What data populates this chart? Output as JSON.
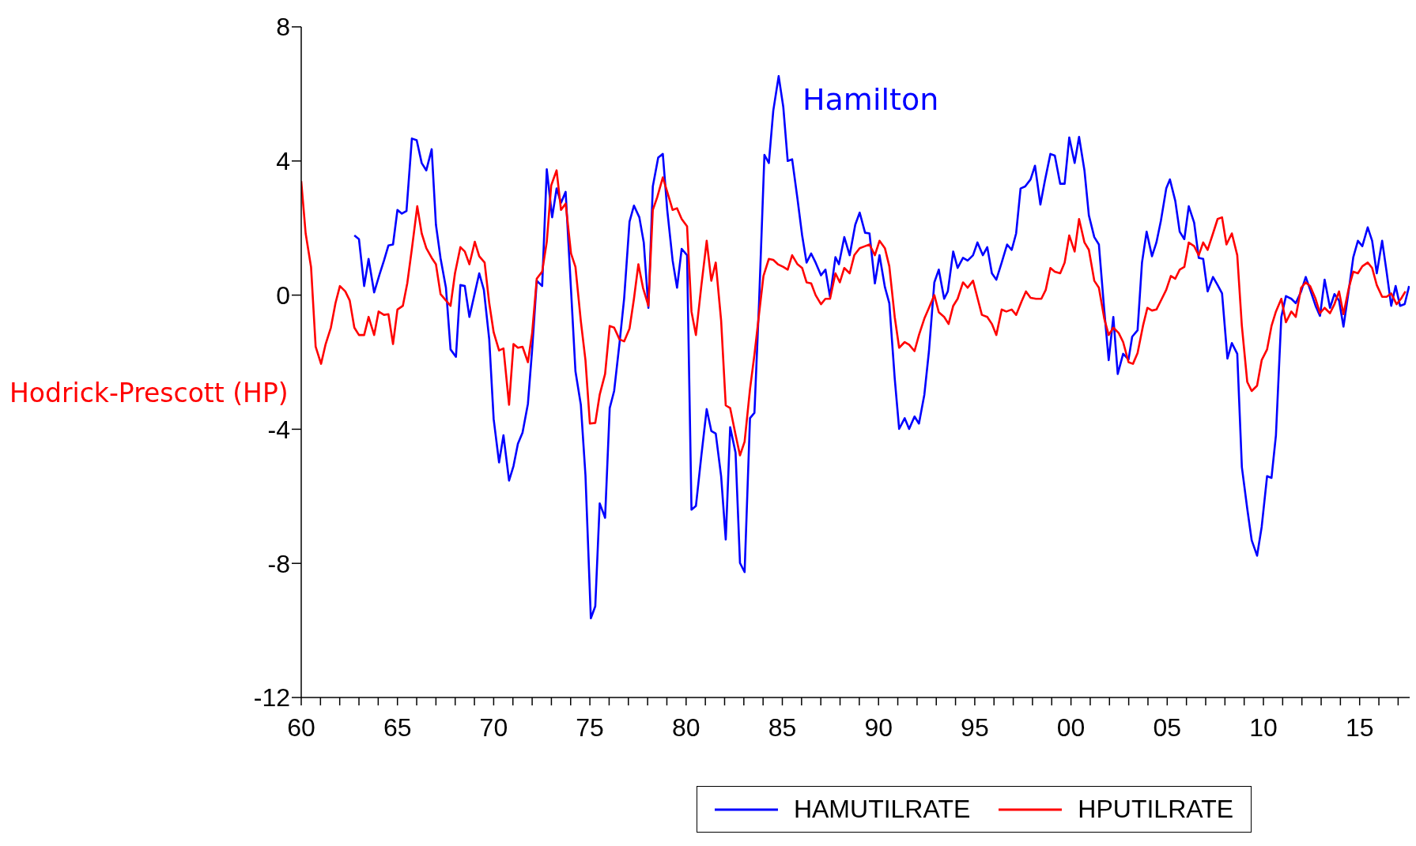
{
  "chart_data": {
    "type": "line",
    "xlim": [
      1960,
      2017.6
    ],
    "ylim": [
      -12,
      8
    ],
    "yticks": [
      -12,
      -8,
      -4,
      0,
      4,
      8
    ],
    "xticks": [
      {
        "value": 1960,
        "label": "60"
      },
      {
        "value": 1961,
        "label": null
      },
      {
        "value": 1962,
        "label": null
      },
      {
        "value": 1963,
        "label": null
      },
      {
        "value": 1964,
        "label": null
      },
      {
        "value": 1965,
        "label": "65"
      },
      {
        "value": 1966,
        "label": null
      },
      {
        "value": 1967,
        "label": null
      },
      {
        "value": 1968,
        "label": null
      },
      {
        "value": 1969,
        "label": null
      },
      {
        "value": 1970,
        "label": "70"
      },
      {
        "value": 1971,
        "label": null
      },
      {
        "value": 1972,
        "label": null
      },
      {
        "value": 1973,
        "label": null
      },
      {
        "value": 1974,
        "label": null
      },
      {
        "value": 1975,
        "label": "75"
      },
      {
        "value": 1976,
        "label": null
      },
      {
        "value": 1977,
        "label": null
      },
      {
        "value": 1978,
        "label": null
      },
      {
        "value": 1979,
        "label": null
      },
      {
        "value": 1980,
        "label": "80"
      },
      {
        "value": 1981,
        "label": null
      },
      {
        "value": 1982,
        "label": null
      },
      {
        "value": 1983,
        "label": null
      },
      {
        "value": 1984,
        "label": null
      },
      {
        "value": 1985,
        "label": "85"
      },
      {
        "value": 1986,
        "label": null
      },
      {
        "value": 1987,
        "label": null
      },
      {
        "value": 1988,
        "label": null
      },
      {
        "value": 1989,
        "label": null
      },
      {
        "value": 1990,
        "label": "90"
      },
      {
        "value": 1991,
        "label": null
      },
      {
        "value": 1992,
        "label": null
      },
      {
        "value": 1993,
        "label": null
      },
      {
        "value": 1994,
        "label": null
      },
      {
        "value": 1995,
        "label": "95"
      },
      {
        "value": 1996,
        "label": null
      },
      {
        "value": 1997,
        "label": null
      },
      {
        "value": 1998,
        "label": null
      },
      {
        "value": 1999,
        "label": null
      },
      {
        "value": 2000,
        "label": "00"
      },
      {
        "value": 2001,
        "label": null
      },
      {
        "value": 2002,
        "label": null
      },
      {
        "value": 2003,
        "label": null
      },
      {
        "value": 2004,
        "label": null
      },
      {
        "value": 2005,
        "label": "05"
      },
      {
        "value": 2006,
        "label": null
      },
      {
        "value": 2007,
        "label": null
      },
      {
        "value": 2008,
        "label": null
      },
      {
        "value": 2009,
        "label": null
      },
      {
        "value": 2010,
        "label": "10"
      },
      {
        "value": 2011,
        "label": null
      },
      {
        "value": 2012,
        "label": null
      },
      {
        "value": 2013,
        "label": null
      },
      {
        "value": 2014,
        "label": null
      },
      {
        "value": 2015,
        "label": "15"
      },
      {
        "value": 2016,
        "label": null
      },
      {
        "value": 2017,
        "label": null
      }
    ],
    "grid": false,
    "legend": "bottom",
    "marker": "none",
    "line_style": "solid",
    "annotations": [
      "Hamilton",
      "Hodrick-Prescott (HP)"
    ],
    "series": [
      {
        "name": "HAMUTILRATE",
        "color": "#0000ff",
        "x": [
          1962.76,
          1963.0,
          1963.27,
          1963.5,
          1963.79,
          1964.07,
          1964.3,
          1964.53,
          1964.77,
          1965.0,
          1965.23,
          1965.47,
          1965.75,
          1966.0,
          1966.26,
          1966.5,
          1966.78,
          1967.0,
          1967.24,
          1967.52,
          1967.76,
          1968.04,
          1968.27,
          1968.5,
          1968.74,
          1969.25,
          1969.49,
          1969.77,
          1970.0,
          1970.28,
          1970.51,
          1970.8,
          1971.03,
          1971.26,
          1971.5,
          1971.78,
          1972.0,
          1972.24,
          1972.52,
          1972.76,
          1973.04,
          1973.27,
          1973.5,
          1973.74,
          1974.02,
          1974.25,
          1974.53,
          1974.77,
          1975.05,
          1975.28,
          1975.51,
          1975.79,
          1976.03,
          1976.26,
          1976.54,
          1976.78,
          1977.06,
          1977.29,
          1977.57,
          1977.8,
          1978.04,
          1978.27,
          1978.55,
          1978.79,
          1979.02,
          1979.3,
          1979.53,
          1979.77,
          1980.05,
          1980.28,
          1980.51,
          1980.79,
          1981.07,
          1981.31,
          1981.54,
          1981.82,
          1982.06,
          1982.29,
          1982.57,
          1982.8,
          1983.04,
          1983.32,
          1983.55,
          1983.79,
          1984.07,
          1984.3,
          1984.53,
          1984.81,
          1985.05,
          1985.28,
          1985.51,
          1985.79,
          1986.03,
          1986.26,
          1986.5,
          1986.73,
          1987.01,
          1987.24,
          1987.48,
          1987.76,
          1987.94,
          1988.22,
          1988.5,
          1988.79,
          1989.02,
          1989.3,
          1989.53,
          1989.81,
          1990.05,
          1990.33,
          1990.56,
          1990.84,
          1991.07,
          1991.36,
          1991.59,
          1991.87,
          1992.1,
          1992.38,
          1992.62,
          1992.9,
          1993.13,
          1993.41,
          1993.6,
          1993.88,
          1994.11,
          1994.39,
          1994.63,
          1994.91,
          1995.14,
          1995.42,
          1995.65,
          1995.89,
          1996.12,
          1996.4,
          1996.68,
          1996.92,
          1997.15,
          1997.38,
          1997.62,
          1997.9,
          1998.13,
          1998.41,
          1998.64,
          1998.93,
          1999.16,
          1999.44,
          1999.67,
          1999.91,
          2000.19,
          2000.42,
          2000.7,
          2000.93,
          2001.21,
          2001.45,
          2001.73,
          2001.96,
          2002.2,
          2002.43,
          2002.71,
          2002.99,
          2003.18,
          2003.46,
          2003.69,
          2003.93,
          2004.21,
          2004.44,
          2004.67,
          2004.95,
          2005.14,
          2005.42,
          2005.65,
          2005.89,
          2006.12,
          2006.4,
          2006.64,
          2006.87,
          2007.1,
          2007.38,
          2007.62,
          2007.85,
          2008.13,
          2008.36,
          2008.64,
          2008.88,
          2009.16,
          2009.39,
          2009.67,
          2009.91,
          2010.19,
          2010.42,
          2010.65,
          2010.93,
          2011.17,
          2011.45,
          2011.68,
          2011.96,
          2012.2,
          2012.43,
          2012.71,
          2012.94,
          2013.18,
          2013.46,
          2013.69,
          2013.93,
          2014.16,
          2014.44,
          2014.67,
          2014.91,
          2015.14,
          2015.42,
          2015.65,
          2015.89,
          2016.17,
          2016.4,
          2016.64,
          2016.87,
          2017.1,
          2017.34,
          2017.57
        ],
        "values": [
          1.78,
          1.67,
          0.27,
          1.08,
          0.08,
          0.62,
          1.03,
          1.48,
          1.51,
          2.54,
          2.43,
          2.51,
          4.67,
          4.62,
          3.94,
          3.72,
          4.35,
          2.1,
          1.1,
          0.22,
          -1.62,
          -1.84,
          0.3,
          0.27,
          -0.65,
          0.65,
          0.16,
          -1.32,
          -3.7,
          -4.99,
          -4.18,
          -5.53,
          -5.1,
          -4.43,
          -4.1,
          -3.24,
          -1.62,
          0.43,
          0.27,
          3.75,
          2.32,
          3.18,
          2.75,
          3.08,
          0.16,
          -2.27,
          -3.27,
          -5.37,
          -9.64,
          -9.28,
          -6.21,
          -6.64,
          -3.37,
          -2.86,
          -1.43,
          -0.1,
          2.19,
          2.67,
          2.32,
          1.57,
          -0.38,
          3.24,
          4.1,
          4.21,
          2.54,
          1.03,
          0.22,
          1.38,
          1.19,
          -6.4,
          -6.29,
          -4.8,
          -3.4,
          -4.05,
          -4.13,
          -5.4,
          -7.29,
          -3.94,
          -4.7,
          -7.99,
          -8.26,
          -3.67,
          -3.51,
          -0.24,
          4.18,
          3.94,
          5.5,
          6.53,
          5.61,
          4.0,
          4.05,
          2.86,
          1.78,
          0.97,
          1.24,
          0.97,
          0.59,
          0.76,
          -0.05,
          1.13,
          0.92,
          1.73,
          1.19,
          2.1,
          2.46,
          1.86,
          1.84,
          0.35,
          1.19,
          0.24,
          -0.24,
          -2.48,
          -3.99,
          -3.67,
          -3.99,
          -3.62,
          -3.83,
          -2.97,
          -1.67,
          0.38,
          0.76,
          -0.11,
          0.11,
          1.3,
          0.81,
          1.11,
          1.03,
          1.19,
          1.57,
          1.19,
          1.43,
          0.65,
          0.46,
          0.97,
          1.51,
          1.35,
          1.84,
          3.18,
          3.24,
          3.45,
          3.86,
          2.7,
          3.4,
          4.21,
          4.16,
          3.32,
          3.32,
          4.7,
          3.94,
          4.72,
          3.72,
          2.38,
          1.73,
          1.51,
          -0.46,
          -1.94,
          -0.65,
          -2.35,
          -1.75,
          -1.92,
          -1.24,
          -1.05,
          0.97,
          1.89,
          1.16,
          1.57,
          2.21,
          3.18,
          3.45,
          2.81,
          1.89,
          1.67,
          2.65,
          2.16,
          1.11,
          1.08,
          0.11,
          0.54,
          0.3,
          0.05,
          -1.89,
          -1.43,
          -1.75,
          -5.13,
          -6.37,
          -7.31,
          -7.77,
          -6.91,
          -5.4,
          -5.45,
          -4.18,
          -0.65,
          -0.03,
          -0.11,
          -0.24,
          0.11,
          0.54,
          0.16,
          -0.32,
          -0.62,
          0.46,
          -0.38,
          0.03,
          -0.16,
          -0.94,
          0.16,
          1.13,
          1.62,
          1.46,
          2.02,
          1.62,
          0.65,
          1.62,
          0.7,
          -0.32,
          0.27,
          -0.32,
          -0.27,
          0.27
        ]
      },
      {
        "name": "HPUTILRATE",
        "color": "#ff0000",
        "x": [
          1960.0,
          1960.23,
          1960.51,
          1960.75,
          1961.03,
          1961.26,
          1961.54,
          1961.78,
          1962.01,
          1962.29,
          1962.52,
          1962.76,
          1963.0,
          1963.27,
          1963.5,
          1963.79,
          1964.02,
          1964.3,
          1964.53,
          1964.77,
          1965.0,
          1965.28,
          1965.51,
          1965.75,
          1966.03,
          1966.26,
          1966.5,
          1966.78,
          1967.0,
          1967.24,
          1967.52,
          1967.76,
          1967.99,
          1968.27,
          1968.5,
          1968.74,
          1969.02,
          1969.25,
          1969.53,
          1969.77,
          1970.0,
          1970.28,
          1970.51,
          1970.8,
          1971.03,
          1971.26,
          1971.5,
          1971.78,
          1972.0,
          1972.24,
          1972.52,
          1972.76,
          1972.99,
          1973.27,
          1973.5,
          1973.74,
          1974.02,
          1974.25,
          1974.53,
          1974.77,
          1975.0,
          1975.28,
          1975.51,
          1975.79,
          1976.03,
          1976.26,
          1976.54,
          1976.78,
          1977.06,
          1977.29,
          1977.52,
          1977.76,
          1978.04,
          1978.27,
          1978.5,
          1978.79,
          1979.02,
          1979.3,
          1979.53,
          1979.77,
          1980.05,
          1980.28,
          1980.51,
          1980.79,
          1981.07,
          1981.31,
          1981.54,
          1981.82,
          1982.06,
          1982.29,
          1982.57,
          1982.8,
          1983.04,
          1983.32,
          1983.55,
          1983.79,
          1984.02,
          1984.3,
          1984.53,
          1984.77,
          1985.05,
          1985.28,
          1985.51,
          1985.79,
          1986.03,
          1986.26,
          1986.5,
          1986.73,
          1987.01,
          1987.24,
          1987.48,
          1987.76,
          1987.99,
          1988.22,
          1988.5,
          1988.74,
          1989.02,
          1989.3,
          1989.53,
          1989.81,
          1990.05,
          1990.33,
          1990.56,
          1990.84,
          1991.07,
          1991.36,
          1991.59,
          1991.87,
          1992.1,
          1992.38,
          1992.62,
          1992.9,
          1993.13,
          1993.41,
          1993.64,
          1993.88,
          1994.11,
          1994.39,
          1994.63,
          1994.91,
          1995.14,
          1995.37,
          1995.65,
          1995.89,
          1996.12,
          1996.4,
          1996.64,
          1996.92,
          1997.15,
          1997.43,
          1997.66,
          1997.9,
          1998.18,
          1998.46,
          1998.69,
          1998.93,
          1999.16,
          1999.44,
          1999.67,
          1999.91,
          2000.19,
          2000.42,
          2000.7,
          2000.93,
          2001.21,
          2001.45,
          2001.73,
          2001.96,
          2002.2,
          2002.48,
          2002.71,
          2002.99,
          2003.22,
          2003.46,
          2003.74,
          2003.97,
          2004.21,
          2004.44,
          2004.72,
          2004.95,
          2005.19,
          2005.42,
          2005.65,
          2005.89,
          2006.12,
          2006.4,
          2006.64,
          2006.87,
          2007.1,
          2007.38,
          2007.62,
          2007.85,
          2008.08,
          2008.36,
          2008.64,
          2008.88,
          2009.16,
          2009.39,
          2009.67,
          2009.91,
          2010.19,
          2010.42,
          2010.65,
          2010.93,
          2011.17,
          2011.45,
          2011.68,
          2011.96,
          2012.2,
          2012.43,
          2012.71,
          2012.94,
          2013.18,
          2013.46,
          2013.69,
          2013.93,
          2014.16,
          2014.44,
          2014.67,
          2014.91,
          2015.14,
          2015.42,
          2015.65,
          2015.89,
          2016.17,
          2016.4,
          2016.64,
          2016.92,
          2017.15,
          2017.38
        ],
        "values": [
          3.4,
          1.84,
          0.84,
          -1.54,
          -2.05,
          -1.48,
          -0.97,
          -0.24,
          0.27,
          0.11,
          -0.16,
          -0.97,
          -1.19,
          -1.19,
          -0.65,
          -1.19,
          -0.49,
          -0.59,
          -0.57,
          -1.46,
          -0.43,
          -0.32,
          0.35,
          1.38,
          2.65,
          1.84,
          1.4,
          1.11,
          0.92,
          0.03,
          -0.16,
          -0.32,
          0.65,
          1.43,
          1.3,
          0.92,
          1.59,
          1.16,
          0.97,
          -0.24,
          -1.11,
          -1.65,
          -1.59,
          -3.27,
          -1.46,
          -1.57,
          -1.54,
          -2.0,
          -1.13,
          0.49,
          0.7,
          1.59,
          3.27,
          3.72,
          2.54,
          2.73,
          1.24,
          0.84,
          -0.78,
          -1.94,
          -3.83,
          -3.81,
          -2.97,
          -2.35,
          -0.92,
          -0.97,
          -1.32,
          -1.38,
          -1.0,
          -0.11,
          0.92,
          0.22,
          -0.32,
          2.54,
          2.92,
          3.51,
          3.08,
          2.54,
          2.59,
          2.27,
          2.05,
          -0.49,
          -1.19,
          0.27,
          1.62,
          0.43,
          0.97,
          -0.76,
          -3.29,
          -3.37,
          -4.16,
          -4.78,
          -4.37,
          -2.81,
          -1.78,
          -0.57,
          0.57,
          1.08,
          1.05,
          0.92,
          0.84,
          0.76,
          1.19,
          0.92,
          0.81,
          0.38,
          0.35,
          0.0,
          -0.27,
          -0.11,
          -0.11,
          0.65,
          0.38,
          0.81,
          0.65,
          1.19,
          1.4,
          1.46,
          1.51,
          1.19,
          1.62,
          1.4,
          0.86,
          -0.65,
          -1.57,
          -1.4,
          -1.48,
          -1.67,
          -1.19,
          -0.7,
          -0.38,
          0.0,
          -0.51,
          -0.65,
          -0.86,
          -0.32,
          -0.11,
          0.38,
          0.22,
          0.43,
          -0.08,
          -0.59,
          -0.65,
          -0.86,
          -1.19,
          -0.43,
          -0.49,
          -0.43,
          -0.59,
          -0.19,
          0.11,
          -0.08,
          -0.11,
          -0.11,
          0.16,
          0.81,
          0.7,
          0.65,
          0.97,
          1.78,
          1.3,
          2.27,
          1.57,
          1.35,
          0.43,
          0.22,
          -0.7,
          -1.19,
          -0.97,
          -1.13,
          -1.4,
          -2.0,
          -2.05,
          -1.73,
          -0.92,
          -0.38,
          -0.46,
          -0.43,
          -0.11,
          0.16,
          0.57,
          0.49,
          0.76,
          0.84,
          1.57,
          1.46,
          1.19,
          1.57,
          1.35,
          1.84,
          2.27,
          2.32,
          1.51,
          1.84,
          1.19,
          -0.92,
          -2.59,
          -2.86,
          -2.7,
          -1.94,
          -1.62,
          -0.92,
          -0.49,
          -0.11,
          -0.81,
          -0.49,
          -0.65,
          0.22,
          0.38,
          0.27,
          -0.11,
          -0.54,
          -0.38,
          -0.54,
          -0.27,
          0.11,
          -0.57,
          0.22,
          0.7,
          0.65,
          0.86,
          0.97,
          0.81,
          0.3,
          -0.05,
          -0.05,
          0.05,
          -0.27,
          -0.11,
          0.11
        ]
      }
    ]
  }
}
